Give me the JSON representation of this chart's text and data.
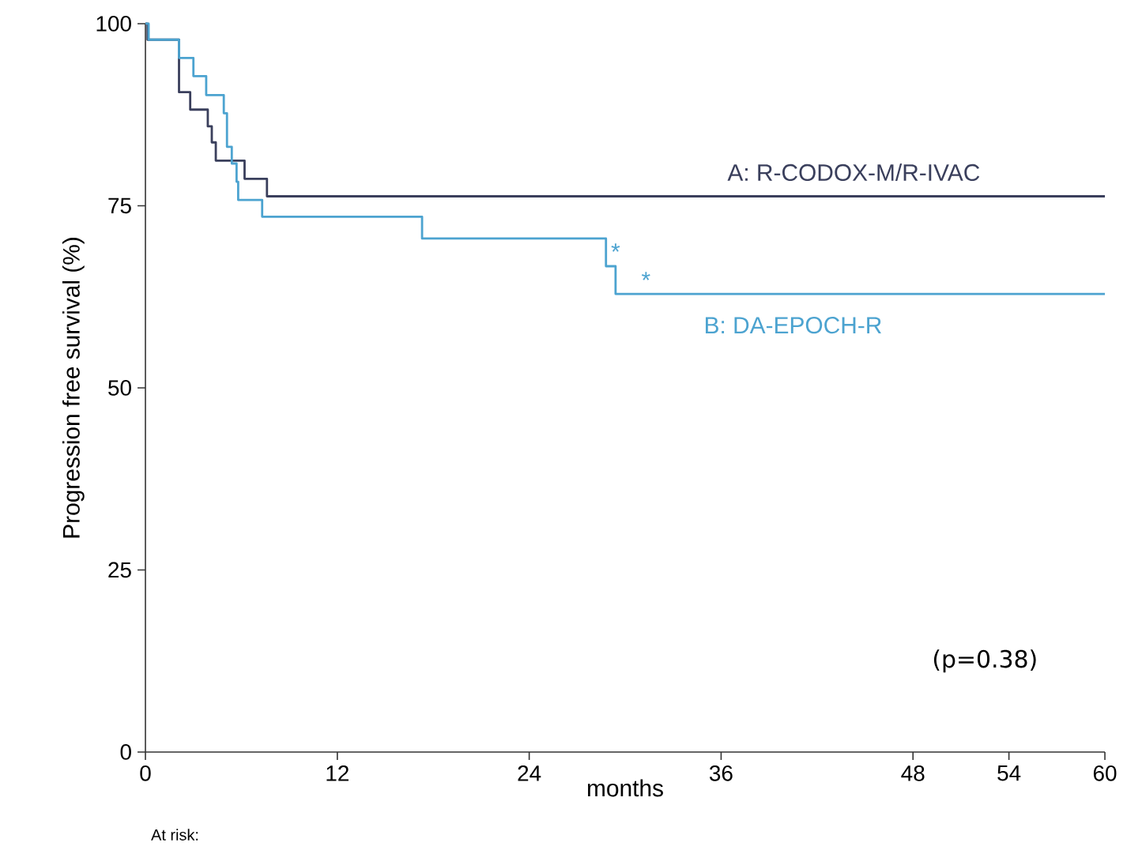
{
  "chart_data": {
    "type": "step",
    "xlabel": "months",
    "ylabel": "Progression free survival (%)",
    "xlim": [
      0,
      60
    ],
    "ylim": [
      0,
      100
    ],
    "xticks": [
      0,
      12,
      24,
      36,
      48,
      54,
      60
    ],
    "yticks": [
      0,
      25,
      50,
      75,
      100
    ],
    "grid": false,
    "legend": false,
    "series": [
      {
        "name": "A: R-CODOX-M/R-IVAC",
        "color": "#3a3f5c",
        "x": [
          0,
          0.13,
          2.1,
          2.8,
          3.9,
          4.15,
          4.4,
          6.2,
          7.6,
          60
        ],
        "values": [
          100,
          97.8,
          90.6,
          88.2,
          85.9,
          83.7,
          81.2,
          78.7,
          76.3,
          76.3
        ]
      },
      {
        "name": "B: DA-EPOCH-R",
        "color": "#4ca3d0",
        "x": [
          0,
          0.2,
          2.1,
          3.0,
          3.8,
          4.9,
          5.1,
          5.4,
          5.7,
          5.8,
          7.3,
          17.3,
          28.8,
          29.4,
          60
        ],
        "values": [
          100,
          97.8,
          95.3,
          92.8,
          90.2,
          87.7,
          83.1,
          80.8,
          78.3,
          75.8,
          73.5,
          70.5,
          66.7,
          62.9,
          62.9
        ]
      }
    ],
    "annotations": [
      "*",
      "*",
      "(p=0.38)",
      "At risk:"
    ]
  }
}
